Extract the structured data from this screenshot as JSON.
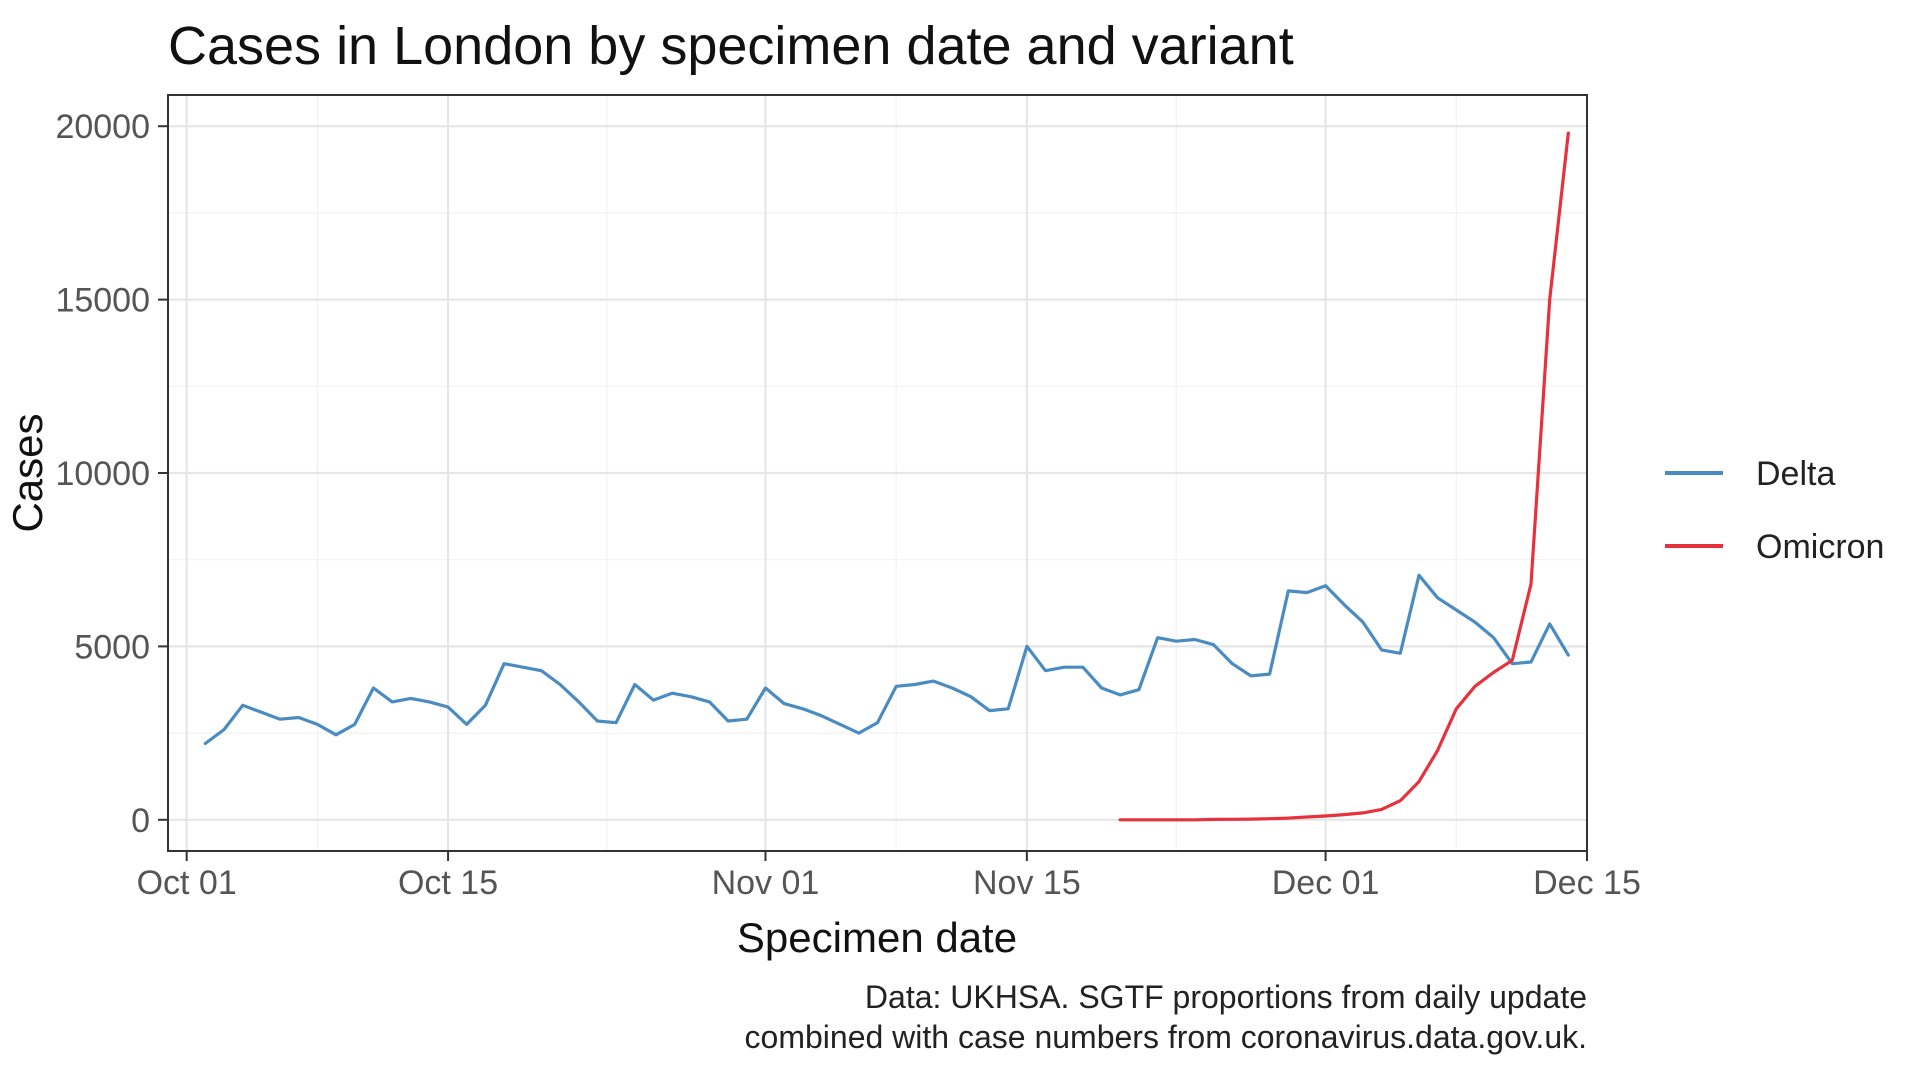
{
  "chart_data": {
    "type": "line",
    "title": "Cases in London by specimen date and variant",
    "xlabel": "Specimen date",
    "ylabel": "Cases",
    "x_ticks": [
      "Oct 01",
      "Oct 15",
      "Nov 01",
      "Nov 15",
      "Dec 01",
      "Dec 15"
    ],
    "y_ticks": [
      0,
      5000,
      10000,
      15000,
      20000
    ],
    "xlim": [
      "2021-09-30",
      "2021-12-15"
    ],
    "ylim": [
      -900,
      20900
    ],
    "grid": true,
    "legend_position": "right",
    "caption": [
      "Data: UKHSA. SGTF proportions from daily update",
      "combined with case numbers from coronavirus.data.gov.uk."
    ],
    "series": [
      {
        "name": "Delta",
        "color": "#4A8CC2",
        "points": [
          [
            "2021-10-02",
            2200
          ],
          [
            "2021-10-03",
            2600
          ],
          [
            "2021-10-04",
            3300
          ],
          [
            "2021-10-05",
            3100
          ],
          [
            "2021-10-06",
            2900
          ],
          [
            "2021-10-07",
            2950
          ],
          [
            "2021-10-08",
            2750
          ],
          [
            "2021-10-09",
            2450
          ],
          [
            "2021-10-10",
            2750
          ],
          [
            "2021-10-11",
            3800
          ],
          [
            "2021-10-12",
            3400
          ],
          [
            "2021-10-13",
            3500
          ],
          [
            "2021-10-14",
            3400
          ],
          [
            "2021-10-15",
            3250
          ],
          [
            "2021-10-16",
            2750
          ],
          [
            "2021-10-17",
            3300
          ],
          [
            "2021-10-18",
            4500
          ],
          [
            "2021-10-19",
            4400
          ],
          [
            "2021-10-20",
            4300
          ],
          [
            "2021-10-21",
            3900
          ],
          [
            "2021-10-22",
            3400
          ],
          [
            "2021-10-23",
            2850
          ],
          [
            "2021-10-24",
            2800
          ],
          [
            "2021-10-25",
            3900
          ],
          [
            "2021-10-26",
            3450
          ],
          [
            "2021-10-27",
            3650
          ],
          [
            "2021-10-28",
            3550
          ],
          [
            "2021-10-29",
            3400
          ],
          [
            "2021-10-30",
            2850
          ],
          [
            "2021-10-31",
            2900
          ],
          [
            "2021-11-01",
            3800
          ],
          [
            "2021-11-02",
            3350
          ],
          [
            "2021-11-03",
            3200
          ],
          [
            "2021-11-04",
            3000
          ],
          [
            "2021-11-05",
            2750
          ],
          [
            "2021-11-06",
            2500
          ],
          [
            "2021-11-07",
            2800
          ],
          [
            "2021-11-08",
            3850
          ],
          [
            "2021-11-09",
            3900
          ],
          [
            "2021-11-10",
            4000
          ],
          [
            "2021-11-11",
            3800
          ],
          [
            "2021-11-12",
            3550
          ],
          [
            "2021-11-13",
            3150
          ],
          [
            "2021-11-14",
            3200
          ],
          [
            "2021-11-15",
            5000
          ],
          [
            "2021-11-16",
            4300
          ],
          [
            "2021-11-17",
            4400
          ],
          [
            "2021-11-18",
            4400
          ],
          [
            "2021-11-19",
            3800
          ],
          [
            "2021-11-20",
            3600
          ],
          [
            "2021-11-21",
            3750
          ],
          [
            "2021-11-22",
            5250
          ],
          [
            "2021-11-23",
            5150
          ],
          [
            "2021-11-24",
            5200
          ],
          [
            "2021-11-25",
            5050
          ],
          [
            "2021-11-26",
            4500
          ],
          [
            "2021-11-27",
            4150
          ],
          [
            "2021-11-28",
            4200
          ],
          [
            "2021-11-29",
            6600
          ],
          [
            "2021-11-30",
            6550
          ],
          [
            "2021-12-01",
            6750
          ],
          [
            "2021-12-02",
            6200
          ],
          [
            "2021-12-03",
            5700
          ],
          [
            "2021-12-04",
            4900
          ],
          [
            "2021-12-05",
            4800
          ],
          [
            "2021-12-06",
            7050
          ],
          [
            "2021-12-07",
            6400
          ],
          [
            "2021-12-08",
            6050
          ],
          [
            "2021-12-09",
            5700
          ],
          [
            "2021-12-10",
            5250
          ],
          [
            "2021-12-11",
            4500
          ],
          [
            "2021-12-12",
            4550
          ],
          [
            "2021-12-13",
            5650
          ],
          [
            "2021-12-14",
            4750
          ]
        ]
      },
      {
        "name": "Omicron",
        "color": "#E8323B",
        "points": [
          [
            "2021-11-20",
            0
          ],
          [
            "2021-11-21",
            0
          ],
          [
            "2021-11-22",
            0
          ],
          [
            "2021-11-23",
            0
          ],
          [
            "2021-11-24",
            0
          ],
          [
            "2021-11-25",
            10
          ],
          [
            "2021-11-26",
            15
          ],
          [
            "2021-11-27",
            20
          ],
          [
            "2021-11-28",
            30
          ],
          [
            "2021-11-29",
            50
          ],
          [
            "2021-11-30",
            80
          ],
          [
            "2021-12-01",
            110
          ],
          [
            "2021-12-02",
            150
          ],
          [
            "2021-12-03",
            200
          ],
          [
            "2021-12-04",
            300
          ],
          [
            "2021-12-05",
            550
          ],
          [
            "2021-12-06",
            1100
          ],
          [
            "2021-12-07",
            2000
          ],
          [
            "2021-12-08",
            3200
          ],
          [
            "2021-12-09",
            3850
          ],
          [
            "2021-12-10",
            4250
          ],
          [
            "2021-12-11",
            4600
          ],
          [
            "2021-12-12",
            6800
          ],
          [
            "2021-12-13",
            15000
          ],
          [
            "2021-12-14",
            19800
          ]
        ]
      }
    ]
  }
}
